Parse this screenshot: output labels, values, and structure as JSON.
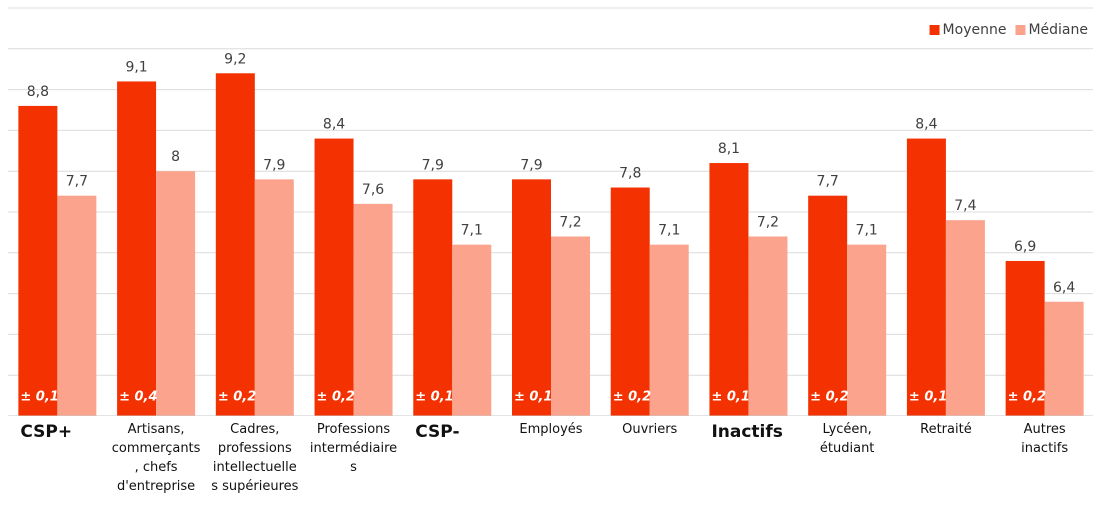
{
  "chart_data": {
    "type": "bar",
    "categories": [
      "CSP+",
      "Artisans, commerçants, chefs d'entreprise",
      "Cadres, professions intellectuelles supérieures",
      "Professions intermédiaires",
      "CSP-",
      "Employés",
      "Ouvriers",
      "Inactifs",
      "Lycéen, étudiant",
      "Retraité",
      "Autres inactifs"
    ],
    "emphasis": [
      true,
      false,
      false,
      false,
      true,
      false,
      false,
      true,
      false,
      false,
      false
    ],
    "series": [
      {
        "name": "Moyenne",
        "color": "#f43100",
        "values": [
          8.8,
          9.1,
          9.2,
          8.4,
          7.9,
          7.9,
          7.8,
          8.1,
          7.7,
          8.4,
          6.9
        ],
        "value_labels": [
          "8,8",
          "9,1",
          "9,2",
          "8,4",
          "7,9",
          "7,9",
          "7,8",
          "8,1",
          "7,7",
          "8,4",
          "6,9"
        ]
      },
      {
        "name": "Médiane",
        "color": "#fca38e",
        "values": [
          7.7,
          8,
          7.9,
          7.6,
          7.1,
          7.2,
          7.1,
          7.2,
          7.1,
          7.4,
          6.4
        ],
        "value_labels": [
          "7,7",
          "8",
          "7,9",
          "7,6",
          "7,1",
          "7,2",
          "7,1",
          "7,2",
          "7,1",
          "7,4",
          "6,4"
        ]
      }
    ],
    "error_labels": [
      "± 0,1",
      "± 0,4",
      "± 0,2",
      "± 0,2",
      "± 0,1",
      "± 0,1",
      "± 0,2",
      "± 0,1",
      "± 0,2",
      "± 0,1",
      "± 0,2"
    ],
    "ylim": [
      5,
      10
    ],
    "yticks": [
      5,
      5.5,
      6,
      6.5,
      7,
      7.5,
      8,
      8.5,
      9,
      9.5,
      10
    ],
    "ytick_labels": false,
    "grid": true,
    "legend": "top-right"
  }
}
